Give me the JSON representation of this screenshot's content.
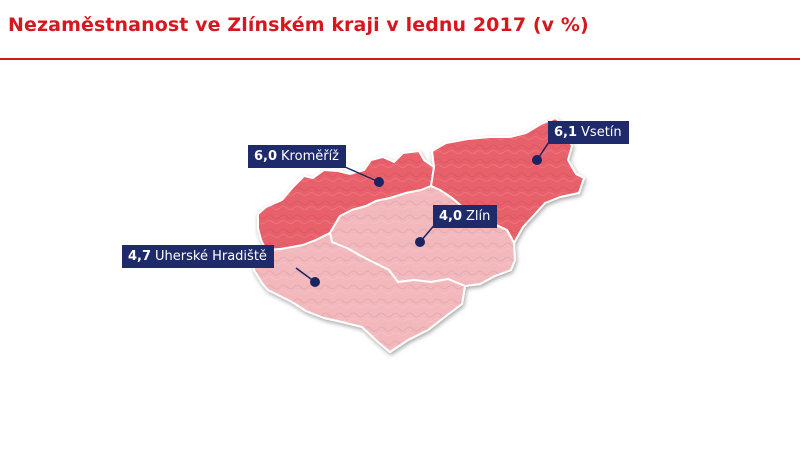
{
  "title": "Nezaměstnanost ve Zlínském kraji v lednu 2017 (v %)",
  "colors": {
    "title": "#d7161e",
    "label_bg": "#1f2a6b",
    "high": "#e8606a",
    "low": "#f2b8bc",
    "marker": "#1a2460"
  },
  "regions": [
    {
      "id": "kromeriz",
      "name": "Kroměříž",
      "value": "6,0"
    },
    {
      "id": "vsetin",
      "name": "Vsetín",
      "value": "6,1"
    },
    {
      "id": "zlin",
      "name": "Zlín",
      "value": "4,0"
    },
    {
      "id": "uherske-hradiste",
      "name": "Uherské Hradiště",
      "value": "4,7"
    }
  ]
}
